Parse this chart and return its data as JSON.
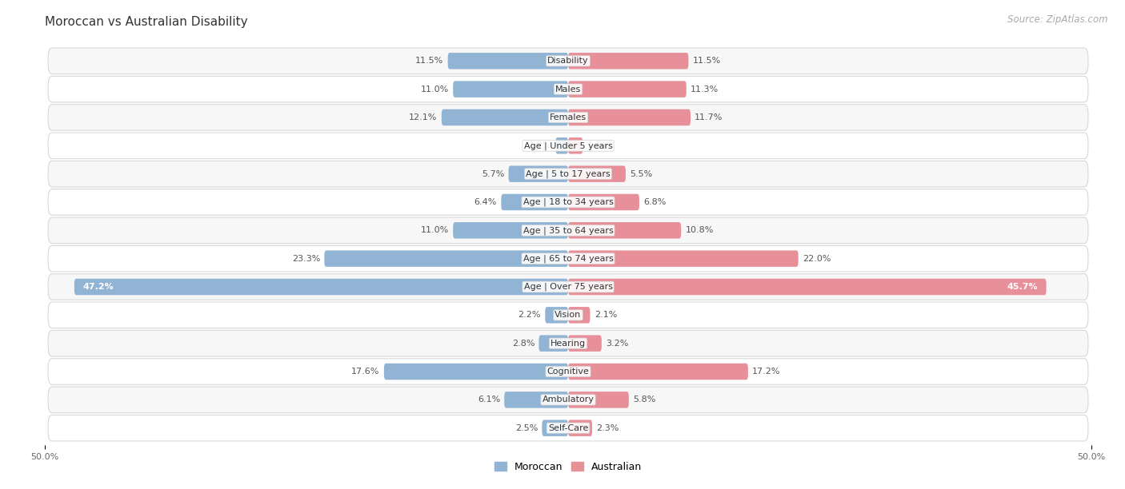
{
  "title": "Moroccan vs Australian Disability",
  "source": "Source: ZipAtlas.com",
  "categories": [
    "Disability",
    "Males",
    "Females",
    "Age | Under 5 years",
    "Age | 5 to 17 years",
    "Age | 18 to 34 years",
    "Age | 35 to 64 years",
    "Age | 65 to 74 years",
    "Age | Over 75 years",
    "Vision",
    "Hearing",
    "Cognitive",
    "Ambulatory",
    "Self-Care"
  ],
  "moroccan": [
    11.5,
    11.0,
    12.1,
    1.2,
    5.7,
    6.4,
    11.0,
    23.3,
    47.2,
    2.2,
    2.8,
    17.6,
    6.1,
    2.5
  ],
  "australian": [
    11.5,
    11.3,
    11.7,
    1.4,
    5.5,
    6.8,
    10.8,
    22.0,
    45.7,
    2.1,
    3.2,
    17.2,
    5.8,
    2.3
  ],
  "moroccan_color": "#92b4d4",
  "australian_color": "#e8909a",
  "moroccan_color_dark": "#5a8fbf",
  "australian_color_dark": "#d95f78",
  "bar_height": 0.58,
  "x_max": 50.0,
  "background_color": "#ffffff",
  "row_odd_color": "#f7f7f7",
  "row_even_color": "#ffffff",
  "row_border_color": "#d8d8d8",
  "label_fontsize": 8.0,
  "title_fontsize": 11,
  "source_fontsize": 8.5,
  "value_fontsize": 8.0
}
